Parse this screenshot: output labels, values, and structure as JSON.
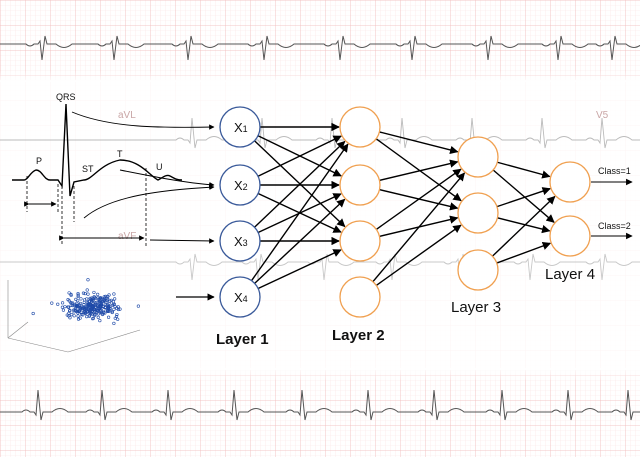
{
  "ecg": {
    "waves": {
      "qrs": "QRS",
      "p": "P",
      "st": "ST",
      "t": "T",
      "u": "U"
    },
    "leads": {
      "avl": "aVL",
      "avf": "aVF",
      "v5": "V5"
    }
  },
  "inputs": [
    {
      "main": "X",
      "sub": "1"
    },
    {
      "main": "X",
      "sub": "2"
    },
    {
      "main": "X",
      "sub": "3"
    },
    {
      "main": "X",
      "sub": "4"
    }
  ],
  "layers": {
    "l1": "Layer 1",
    "l2": "Layer 2",
    "l3": "Layer 3",
    "l4": "Layer 4"
  },
  "outputs": {
    "class1": "Class=1",
    "class2": "Class=2"
  },
  "colors": {
    "grid_major": "#f0b9b9",
    "grid_minor": "#fae3e3",
    "input_node": "#3a5a9a",
    "hidden_node": "#f0a050",
    "scatter": "#1f4aa8"
  }
}
